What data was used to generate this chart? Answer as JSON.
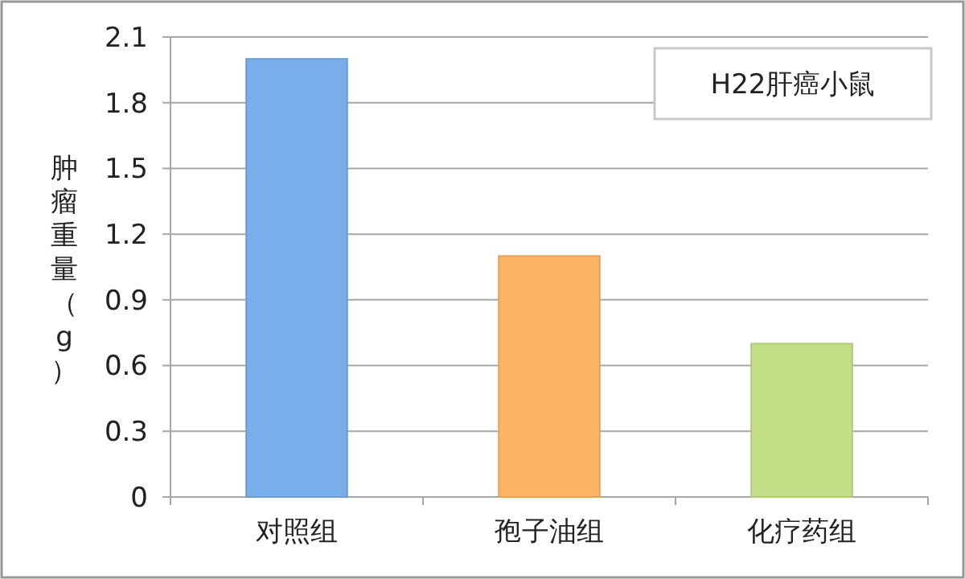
{
  "chart_data": {
    "type": "bar",
    "categories": [
      "对照组",
      "孢子油组",
      "化疗药组"
    ],
    "values": [
      2.0,
      1.1,
      0.7
    ],
    "colors": [
      "#78aeea",
      "#fcb565",
      "#c3df87"
    ],
    "ylabel": "肿瘤重量（g）",
    "annotations": [
      "H22肝癌小鼠"
    ],
    "ylim": [
      0,
      2.1
    ],
    "yticks": [
      0,
      0.3,
      0.6,
      0.9,
      1.2,
      1.5,
      1.8,
      2.1
    ],
    "grid": "y"
  }
}
